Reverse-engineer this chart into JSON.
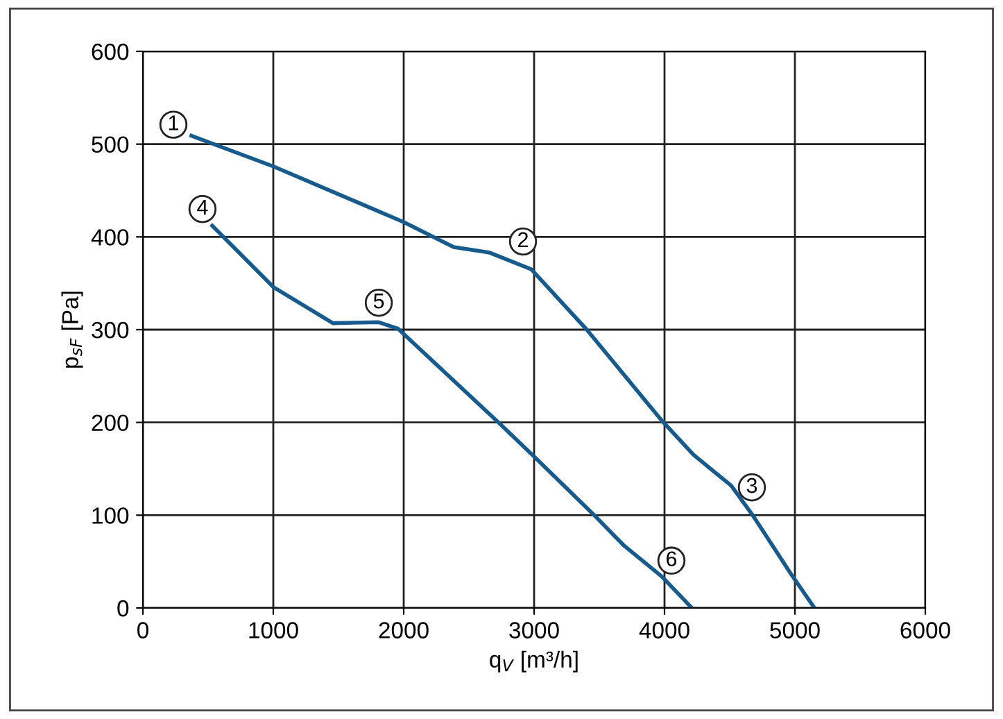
{
  "chart_data": {
    "type": "line",
    "xlabel": "q$_{V}$ [m³/h]",
    "ylabel": "p$_{sF}$ [Pa]",
    "series": [
      {
        "color": "#165a8e",
        "x": [
          372,
          1000,
          1500,
          2000,
          2383,
          2660,
          2979,
          3404,
          3979,
          4223,
          4511,
          4681,
          4968,
          5150
        ],
        "values": [
          509,
          476,
          446,
          416,
          389,
          383,
          365,
          300,
          202,
          165,
          132,
          99,
          37,
          0
        ]
      },
      {
        "color": "#165a8e",
        "x": [
          532,
          1000,
          1457,
          1809,
          1957,
          2734,
          2979,
          3447,
          3691,
          3979,
          4210
        ],
        "values": [
          412,
          346,
          307,
          308,
          301,
          199,
          166,
          102,
          67,
          34,
          0
        ]
      }
    ],
    "annotations": [
      {
        "text": "1",
        "x": 234,
        "y": 521
      },
      {
        "text": "2",
        "x": 2915,
        "y": 395
      },
      {
        "text": "3",
        "x": 4670,
        "y": 130
      },
      {
        "text": "4",
        "x": 457,
        "y": 430
      },
      {
        "text": "5",
        "x": 1809,
        "y": 329
      },
      {
        "text": "6",
        "x": 4053,
        "y": 51
      }
    ],
    "xlim": [
      0,
      6000
    ],
    "ylim": [
      0,
      600
    ],
    "xticks": [
      0,
      1000,
      2000,
      3000,
      4000,
      5000,
      6000
    ],
    "yticks": [
      0,
      100,
      200,
      300,
      400,
      500,
      600
    ],
    "grid": true,
    "legend": false,
    "marker": "none",
    "line_style": "solid"
  }
}
